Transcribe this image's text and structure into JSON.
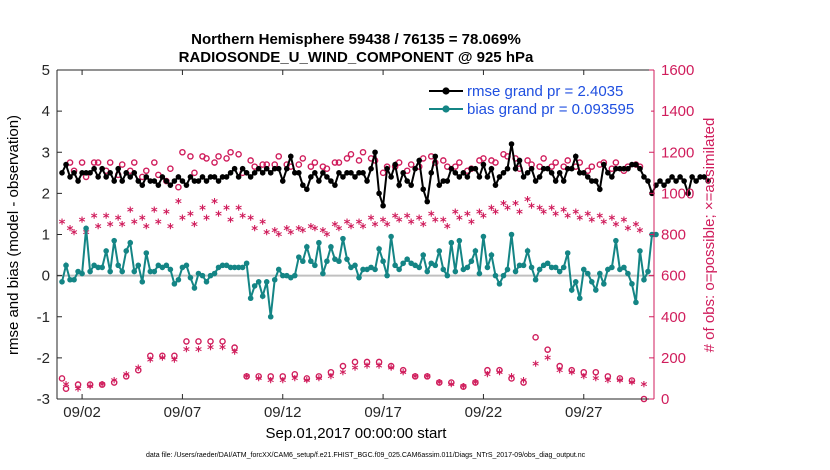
{
  "chart_data": {
    "type": "line",
    "title": "Northern Hemisphere 59438 / 76135 = 78.069%",
    "subtitle": "RADIOSONDE_U_WIND_COMPONENT @ 925 hPa",
    "xlabel": "Sep.01,2017 00:00:00 start",
    "ylabel": "rmse and bias (model - observation)",
    "y2label": "# of obs: o=possible; ×=assimilated",
    "footnote": "data file: /Users/raeder/DAI/ATM_forcXX/CAM6_setup/f.e21.FHIST_BGC.f09_025.CAM6assim.011/Diags_NTrS_2017-09/obs_diag_output.nc",
    "ylim": [
      -3,
      5
    ],
    "y2lim": [
      0,
      1600
    ],
    "xlim": [
      0.75,
      30.5
    ],
    "yticks": [
      5,
      4,
      3,
      2,
      1,
      0,
      -1,
      -2,
      -3
    ],
    "y2ticks": [
      1600,
      1400,
      1200,
      1000,
      800,
      600,
      400,
      200,
      0
    ],
    "xtick_values": [
      2,
      7,
      12,
      17,
      22,
      27
    ],
    "xtick_labels": [
      "09/02",
      "09/07",
      "09/12",
      "09/17",
      "09/22",
      "09/27"
    ],
    "legend_placement": "top-right",
    "colors": {
      "rmse": "#000000",
      "bias": "#148585",
      "obs": "#d01d5c",
      "zero": "#c0c0c0"
    },
    "series": [
      {
        "name": "rmse grand pr = 2.4035",
        "axis": "left",
        "values": [
          2.5,
          2.7,
          2.4,
          2.5,
          2.3,
          2.5,
          2.5,
          2.5,
          2.6,
          2.4,
          2.6,
          2.4,
          2.5,
          2.3,
          2.6,
          2.3,
          2.5,
          2.4,
          2.5,
          2.3,
          2.2,
          2.4,
          2.3,
          2.3,
          2.2,
          2.4,
          2.3,
          2.2,
          2.3,
          2.4,
          2.3,
          2.2,
          2.4,
          2.3,
          2.3,
          2.4,
          2.3,
          2.4,
          2.4,
          2.3,
          2.4,
          2.4,
          2.5,
          2.6,
          2.4,
          2.6,
          2.5,
          2.4,
          2.5,
          2.6,
          2.5,
          2.6,
          2.5,
          2.6,
          2.6,
          2.3,
          2.6,
          2.9,
          2.5,
          2.5,
          2.2,
          2.1,
          2.4,
          2.5,
          2.3,
          2.5,
          2.4,
          2.3,
          2.2,
          2.5,
          2.4,
          2.5,
          2.5,
          2.4,
          2.5,
          2.5,
          2.3,
          2.6,
          3.0,
          2.0,
          1.7,
          2.6,
          2.4,
          2.7,
          2.2,
          2.5,
          2.3,
          2.2,
          2.6,
          2.8,
          2.1,
          1.8,
          2.5,
          2.9,
          2.2,
          2.3,
          2.3,
          2.6,
          2.5,
          2.4,
          2.5,
          2.4,
          2.6,
          2.6,
          2.4,
          2.7,
          2.4,
          2.6,
          2.2,
          2.4,
          2.5,
          2.6,
          3.2,
          2.6,
          2.8,
          2.4,
          2.5,
          2.6,
          2.3,
          2.4,
          2.6,
          2.6,
          2.5,
          2.3,
          2.5,
          2.3,
          2.6,
          2.6,
          2.9,
          2.5,
          2.5,
          2.4,
          2.3,
          2.3,
          2.1,
          2.7,
          2.5,
          2.4,
          2.6,
          2.6,
          2.6,
          2.6,
          2.7,
          2.7,
          2.6,
          2.4,
          2.3,
          2.0,
          2.2,
          2.3,
          2.2,
          2.3,
          2.4,
          2.3,
          2.4,
          2.3,
          2.0,
          2.4,
          2.3,
          2.4,
          2.4,
          2.3
        ]
      },
      {
        "name": "bias grand pr = 0.093595",
        "axis": "left",
        "values": [
          -0.15,
          0.25,
          -0.1,
          -0.1,
          0.1,
          0.05,
          1.15,
          0.1,
          0.25,
          0.2,
          0.2,
          0.6,
          0.1,
          0.85,
          0.25,
          0.1,
          0.6,
          0.8,
          0.1,
          0.25,
          -0.15,
          0.55,
          0.1,
          0.1,
          0.25,
          0.2,
          0.25,
          0.15,
          -0.2,
          -0.1,
          0.2,
          0.25,
          -0.05,
          -0.3,
          0.05,
          0.0,
          -0.15,
          0.0,
          0.05,
          0.2,
          0.25,
          0.25,
          0.2,
          0.2,
          0.2,
          0.2,
          0.3,
          -0.55,
          -0.25,
          -0.15,
          -0.5,
          -0.15,
          -1.0,
          -0.1,
          0.15,
          0.0,
          0.0,
          -0.05,
          0.0,
          0.45,
          0.35,
          0.7,
          0.35,
          0.25,
          0.8,
          0.05,
          0.35,
          0.7,
          0.4,
          0.35,
          0.9,
          0.4,
          0.2,
          0.25,
          -0.05,
          0.15,
          0.15,
          0.2,
          0.15,
          0.65,
          0.35,
          0.0,
          0.95,
          0.25,
          0.15,
          0.3,
          0.4,
          0.3,
          0.25,
          0.2,
          0.5,
          0.1,
          0.3,
          0.25,
          0.6,
          0.15,
          0.0,
          0.8,
          0.1,
          0.85,
          0.15,
          0.2,
          0.35,
          0.6,
          0.05,
          0.95,
          0.2,
          0.5,
          0.0,
          -0.2,
          0.0,
          0.15,
          1.0,
          0.1,
          0.25,
          0.25,
          0.6,
          0.2,
          -0.1,
          0.15,
          0.25,
          0.3,
          0.2,
          0.2,
          0.1,
          0.2,
          0.55,
          -0.35,
          -0.15,
          -0.55,
          0.15,
          0.05,
          -0.15,
          -0.35,
          0.05,
          -0.2,
          0.15,
          0.2,
          0.85,
          0.15,
          0.2,
          0.05,
          -0.2,
          -0.65,
          0.6,
          -0.1,
          0.1,
          1.0,
          1.0
        ]
      },
      {
        "name": "possible",
        "axis": "right",
        "marker": "o",
        "values": [
          100,
          50,
          1150,
          1110,
          70,
          1150,
          1080,
          70,
          1150,
          1150,
          70,
          1110,
          1150,
          80,
          1090,
          1140,
          110,
          1110,
          1150,
          140,
          1080,
          1110,
          210,
          1150,
          1090,
          210,
          1060,
          1120,
          210,
          1030,
          1200,
          280,
          1180,
          1100,
          280,
          1180,
          1170,
          280,
          1150,
          1180,
          280,
          1170,
          1200,
          250,
          1190,
          1100,
          110,
          1160,
          1130,
          110,
          1140,
          1140,
          110,
          1140,
          1180,
          110,
          1140,
          1130,
          120,
          1140,
          1170,
          100,
          1130,
          1150,
          110,
          1130,
          1120,
          130,
          1150,
          1150,
          160,
          1170,
          1190,
          180,
          1160,
          1200,
          180,
          1170,
          1160,
          180,
          1100,
          1130,
          160,
          1130,
          1150,
          140,
          1110,
          1140,
          110,
          1130,
          1170,
          110,
          1180,
          1150,
          80,
          1160,
          1130,
          80,
          1130,
          1150,
          60,
          1110,
          1120,
          80,
          1160,
          1170,
          140,
          1160,
          1150,
          140,
          1190,
          1180,
          100,
          1170,
          1120,
          80,
          1160,
          1140,
          300,
          1130,
          1170,
          240,
          1130,
          1150,
          160,
          1130,
          1160,
          140,
          1130,
          1150,
          130,
          1110,
          1130,
          130,
          1140,
          1150,
          110,
          1120,
          1150,
          100,
          1110,
          1130,
          90,
          1140,
          1130,
          0
        ]
      },
      {
        "name": "assimilated",
        "axis": "right",
        "marker": "×",
        "values": [
          850,
          60,
          820,
          800,
          40,
          860,
          800,
          50,
          880,
          830,
          60,
          880,
          840,
          80,
          870,
          840,
          110,
          910,
          850,
          140,
          870,
          830,
          180,
          910,
          850,
          190,
          900,
          830,
          180,
          950,
          870,
          230,
          890,
          840,
          230,
          920,
          870,
          240,
          950,
          890,
          240,
          920,
          860,
          220,
          920,
          880,
          100,
          870,
          820,
          90,
          850,
          800,
          80,
          810,
          790,
          80,
          820,
          800,
          90,
          820,
          810,
          80,
          830,
          820,
          90,
          810,
          790,
          100,
          840,
          820,
          120,
          850,
          830,
          140,
          850,
          830,
          150,
          870,
          840,
          150,
          860,
          840,
          140,
          880,
          860,
          120,
          880,
          850,
          100,
          870,
          840,
          100,
          890,
          860,
          70,
          860,
          830,
          60,
          900,
          870,
          50,
          890,
          850,
          70,
          900,
          880,
          110,
          920,
          900,
          120,
          940,
          920,
          100,
          940,
          900,
          80,
          960,
          930,
          160,
          920,
          900,
          190,
          920,
          890,
          130,
          910,
          880,
          120,
          900,
          870,
          100,
          890,
          860,
          90,
          880,
          850,
          80,
          870,
          840,
          80,
          860,
          820,
          70,
          840,
          810,
          60
        ]
      }
    ]
  }
}
